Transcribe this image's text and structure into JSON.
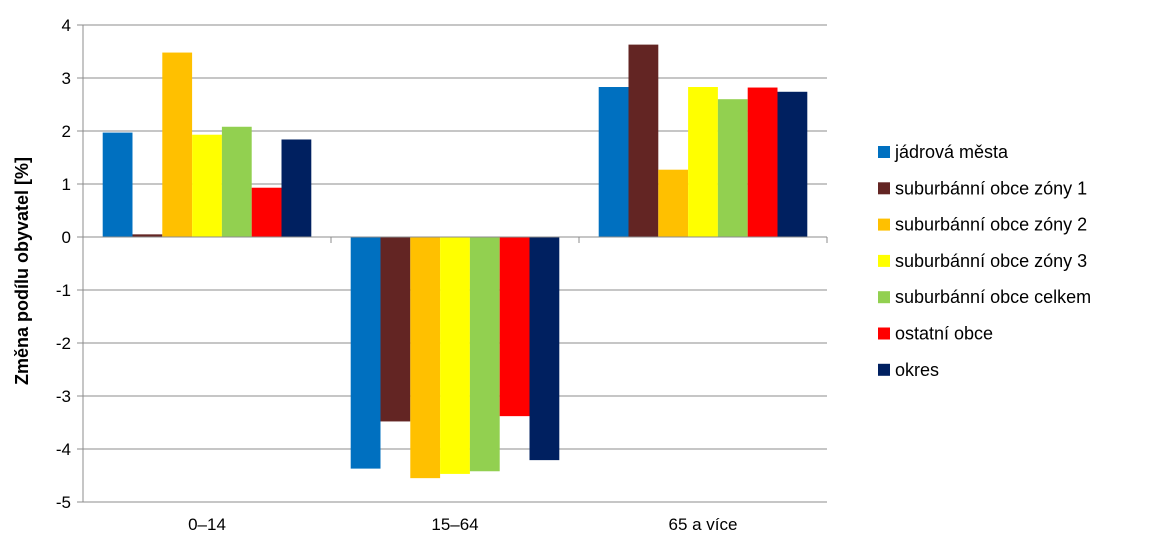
{
  "chart_data": {
    "type": "bar",
    "categories": [
      "0–14",
      "15–64",
      "65 a více"
    ],
    "ylabel": "Změna podílu obyvatel [%]",
    "xlabel": "",
    "ylim": [
      -5,
      4
    ],
    "yticks": [
      4,
      3,
      2,
      1,
      0,
      -1,
      -2,
      -3,
      -4,
      -5
    ],
    "grid": true,
    "legend_position": "right",
    "series": [
      {
        "name": "jádrová města",
        "color": "#0070C0",
        "values": [
          1.97,
          -4.37,
          2.83
        ]
      },
      {
        "name": "suburbánní obce zóny 1",
        "color": "#632523",
        "values": [
          0.05,
          -3.48,
          3.63
        ]
      },
      {
        "name": "suburbánní obce zóny 2",
        "color": "#FFC000",
        "values": [
          3.48,
          -4.55,
          1.27
        ]
      },
      {
        "name": "suburbánní obce zóny 3",
        "color": "#FFFF00",
        "values": [
          1.93,
          -4.47,
          2.83
        ]
      },
      {
        "name": "suburbánní obce celkem",
        "color": "#92D050",
        "values": [
          2.08,
          -4.42,
          2.6
        ]
      },
      {
        "name": "ostatní obce",
        "color": "#FF0000",
        "values": [
          0.93,
          -3.38,
          2.82
        ]
      },
      {
        "name": "okres",
        "color": "#002060",
        "values": [
          1.84,
          -4.21,
          2.74
        ]
      }
    ]
  }
}
